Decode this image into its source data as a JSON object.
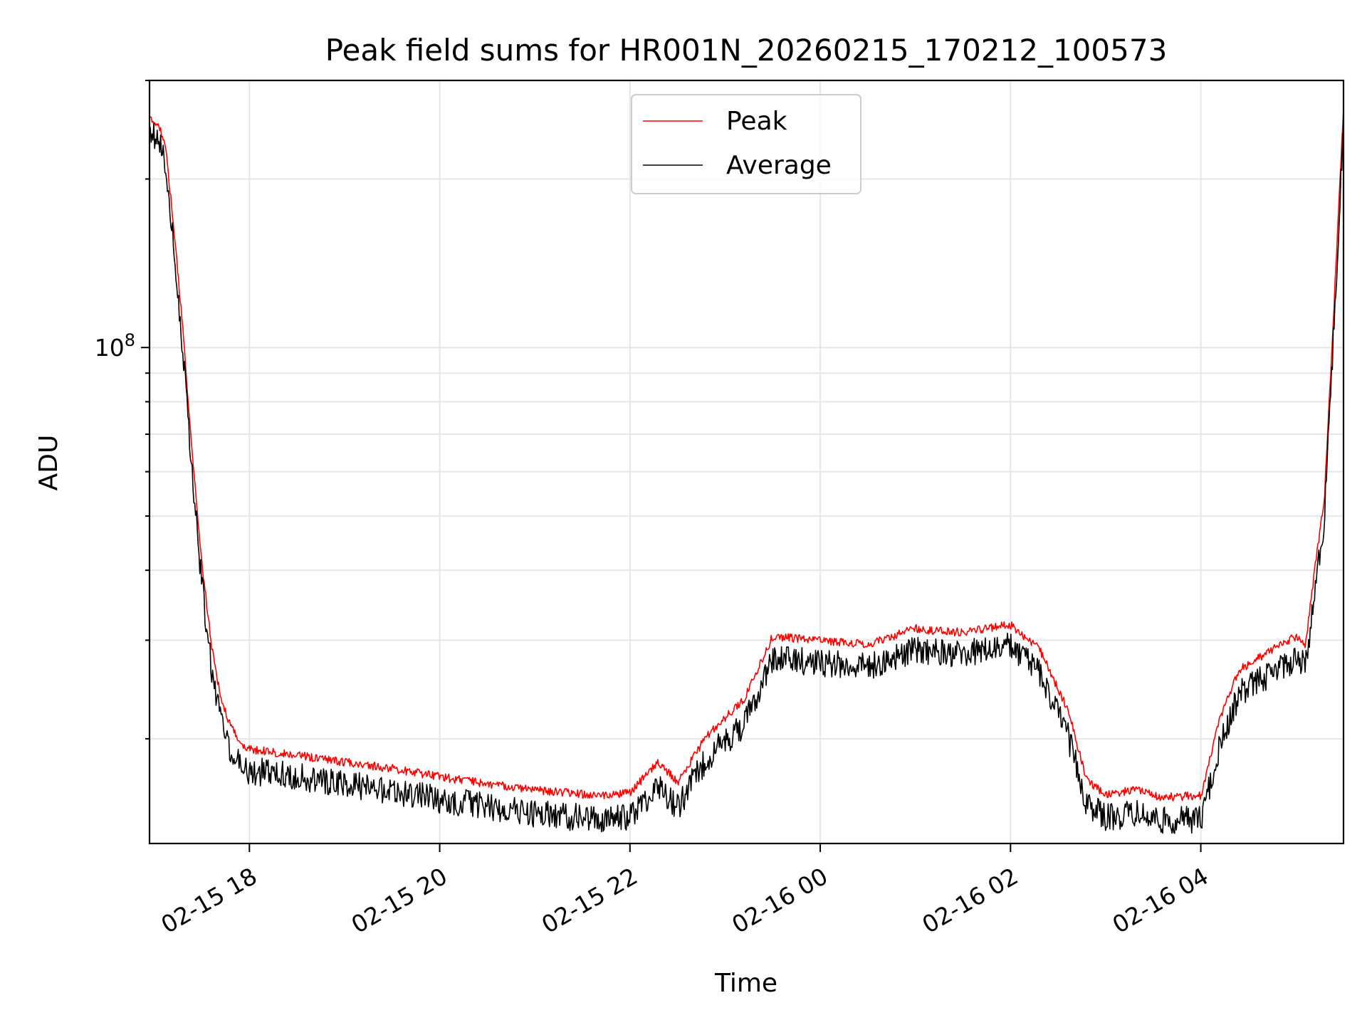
{
  "chart_data": {
    "type": "line",
    "title": "Peak field sums for HR001N_20260215_170212_100573",
    "xlabel": "Time",
    "ylabel": "ADU",
    "yscale": "log",
    "ylim": [
      13000000,
      300000000
    ],
    "xlim_hours": [
      16.95,
      29.5
    ],
    "x_ticks": [
      {
        "hour": 18,
        "label": "02-15 18"
      },
      {
        "hour": 20,
        "label": "02-15 20"
      },
      {
        "hour": 22,
        "label": "02-15 22"
      },
      {
        "hour": 24,
        "label": "02-16 00"
      },
      {
        "hour": 26,
        "label": "02-16 02"
      },
      {
        "hour": 28,
        "label": "02-16 04"
      }
    ],
    "y_tick_labels": [
      {
        "value": 100000000,
        "base": "10",
        "exp": "8"
      }
    ],
    "legend": {
      "position": "upper center",
      "entries": [
        {
          "name": "Peak",
          "color": "#ff0000"
        },
        {
          "name": "Average",
          "color": "#000000"
        }
      ]
    },
    "x_hours": [
      16.95,
      17.05,
      17.12,
      17.2,
      17.3,
      17.4,
      17.5,
      17.6,
      17.7,
      17.8,
      17.9,
      18.0,
      18.3,
      18.6,
      19.0,
      19.5,
      20.0,
      20.5,
      21.0,
      21.5,
      21.8,
      22.0,
      22.3,
      22.5,
      22.8,
      23.2,
      23.5,
      24.0,
      24.5,
      25.0,
      25.5,
      26.0,
      26.3,
      26.6,
      26.8,
      27.0,
      27.3,
      27.6,
      28.0,
      28.2,
      28.4,
      28.7,
      29.0,
      29.1,
      29.2,
      29.3,
      29.4,
      29.5
    ],
    "series": [
      {
        "name": "Peak",
        "color": "#ff0000",
        "values": [
          260000000,
          255000000,
          230000000,
          170000000,
          110000000,
          65000000,
          42000000,
          30000000,
          24000000,
          21500000,
          20000000,
          19500000,
          19200000,
          18900000,
          18500000,
          18000000,
          17400000,
          16900000,
          16500000,
          16200000,
          16100000,
          16300000,
          18500000,
          17000000,
          20500000,
          24000000,
          31000000,
          30500000,
          30000000,
          32000000,
          31500000,
          32500000,
          29500000,
          23000000,
          17200000,
          16200000,
          16500000,
          16000000,
          16100000,
          22000000,
          27000000,
          29000000,
          31000000,
          30000000,
          41000000,
          55000000,
          120000000,
          270000000
        ]
      },
      {
        "name": "Average",
        "color": "#000000",
        "values": [
          255000000,
          250000000,
          225000000,
          165000000,
          105000000,
          63000000,
          40000000,
          28500000,
          22500000,
          20300000,
          19000000,
          18600000,
          18300000,
          18000000,
          17600000,
          17100000,
          16500000,
          16000000,
          15600000,
          15300000,
          15200000,
          15400000,
          17500000,
          16000000,
          19500000,
          22500000,
          29500000,
          29000000,
          28500000,
          30500000,
          30000000,
          31000000,
          28000000,
          21500000,
          16300000,
          15300000,
          15600000,
          15100000,
          15200000,
          20500000,
          25500000,
          27500000,
          29500000,
          28500000,
          39000000,
          53000000,
          115000000,
          265000000
        ]
      }
    ]
  }
}
